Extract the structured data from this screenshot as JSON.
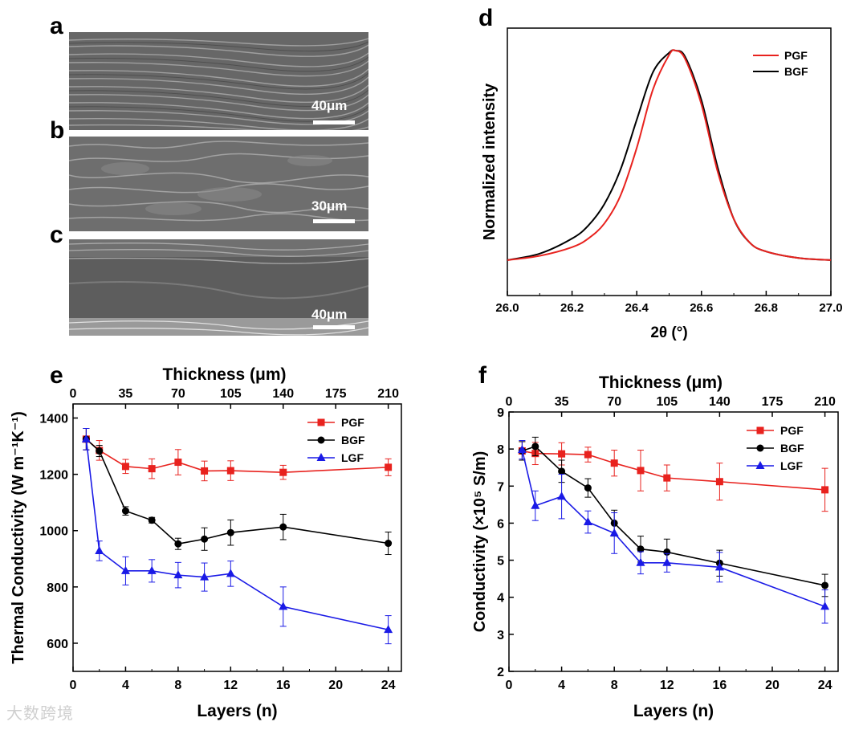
{
  "panels": {
    "a": {
      "letter": "a",
      "scale": "40μm"
    },
    "b": {
      "letter": "b",
      "scale": "30μm"
    },
    "c": {
      "letter": "c",
      "scale": "40μm"
    },
    "d": {
      "letter": "d"
    },
    "e": {
      "letter": "e"
    },
    "f": {
      "letter": "f"
    }
  },
  "watermark": "大数跨境",
  "colors": {
    "PGF": "#e8221e",
    "BGF": "#000000",
    "LGF": "#1a1ae6"
  },
  "chart_data": [
    {
      "id": "d",
      "type": "line",
      "xlabel": "2θ (°)",
      "ylabel": "Normalized intensity",
      "xlim": [
        26.0,
        27.0
      ],
      "ylim": [
        0,
        1
      ],
      "xticks": [
        26.0,
        26.2,
        26.4,
        26.6,
        26.8,
        27.0
      ],
      "xtick_labels": [
        "26.0",
        "26.2",
        "26.4",
        "26.6",
        "26.8",
        "27.0"
      ],
      "legend": [
        "PGF",
        "BGF"
      ],
      "legend_position": "top-right",
      "series": [
        {
          "name": "PGF",
          "x": [
            26.0,
            26.1,
            26.2,
            26.25,
            26.3,
            26.35,
            26.4,
            26.45,
            26.5,
            26.52,
            26.55,
            26.6,
            26.65,
            26.7,
            26.75,
            26.8,
            26.9,
            27.0
          ],
          "y": [
            0.03,
            0.05,
            0.09,
            0.13,
            0.2,
            0.33,
            0.55,
            0.82,
            0.98,
            1.0,
            0.96,
            0.75,
            0.44,
            0.22,
            0.11,
            0.07,
            0.04,
            0.03
          ]
        },
        {
          "name": "BGF",
          "x": [
            26.0,
            26.1,
            26.2,
            26.25,
            26.3,
            26.35,
            26.4,
            26.45,
            26.5,
            26.52,
            26.55,
            26.6,
            26.65,
            26.7,
            26.75,
            26.8,
            26.9,
            27.0
          ],
          "y": [
            0.03,
            0.06,
            0.13,
            0.19,
            0.29,
            0.45,
            0.68,
            0.9,
            0.99,
            1.0,
            0.97,
            0.77,
            0.46,
            0.22,
            0.11,
            0.07,
            0.04,
            0.03
          ]
        }
      ]
    },
    {
      "id": "e",
      "type": "line",
      "xlabel": "Layers (n)",
      "x2label": "Thickness (μm)",
      "ylabel": "Thermal Conductivity (W m⁻¹K⁻¹)",
      "xlim": [
        0,
        25
      ],
      "ylim": [
        500,
        1450
      ],
      "xticks": [
        0,
        4,
        8,
        12,
        16,
        20,
        24
      ],
      "x2ticks": [
        0,
        35,
        70,
        105,
        140,
        175,
        210
      ],
      "yticks": [
        600,
        800,
        1000,
        1200,
        1400
      ],
      "legend_position": "top-right",
      "series": [
        {
          "name": "PGF",
          "marker": "square",
          "x": [
            1,
            2,
            4,
            6,
            8,
            10,
            12,
            16,
            24
          ],
          "y": [
            1325,
            1285,
            1228,
            1220,
            1243,
            1212,
            1213,
            1207,
            1225
          ],
          "err": [
            38,
            35,
            25,
            35,
            45,
            35,
            35,
            25,
            30
          ]
        },
        {
          "name": "BGF",
          "marker": "circle",
          "x": [
            1,
            2,
            4,
            6,
            8,
            10,
            12,
            16,
            24
          ],
          "y": [
            1325,
            1283,
            1070,
            1037,
            953,
            970,
            993,
            1013,
            955
          ],
          "err": [
            38,
            20,
            15,
            10,
            20,
            40,
            45,
            45,
            40
          ]
        },
        {
          "name": "LGF",
          "marker": "triangle",
          "x": [
            1,
            2,
            4,
            6,
            8,
            10,
            12,
            16,
            24
          ],
          "y": [
            1325,
            928,
            857,
            857,
            842,
            835,
            847,
            730,
            648
          ],
          "err": [
            38,
            35,
            50,
            40,
            45,
            50,
            45,
            70,
            50
          ]
        }
      ]
    },
    {
      "id": "f",
      "type": "line",
      "xlabel": "Layers (n)",
      "x2label": "Thickness (μm)",
      "ylabel": "Conductivity (×10⁵ S/m)",
      "xlim": [
        0,
        25
      ],
      "ylim": [
        2,
        9
      ],
      "xticks": [
        0,
        4,
        8,
        12,
        16,
        20,
        24
      ],
      "x2ticks": [
        0,
        35,
        70,
        105,
        140,
        175,
        210
      ],
      "yticks": [
        2,
        3,
        4,
        5,
        6,
        7,
        8,
        9
      ],
      "legend_position": "top-right",
      "series": [
        {
          "name": "PGF",
          "marker": "square",
          "x": [
            1,
            2,
            4,
            6,
            8,
            10,
            12,
            16,
            24
          ],
          "y": [
            7.95,
            7.88,
            7.87,
            7.85,
            7.62,
            7.42,
            7.22,
            7.12,
            6.9
          ],
          "err": [
            0.25,
            0.3,
            0.3,
            0.2,
            0.35,
            0.55,
            0.35,
            0.5,
            0.58
          ]
        },
        {
          "name": "BGF",
          "marker": "circle",
          "x": [
            1,
            2,
            4,
            6,
            8,
            10,
            12,
            16,
            24
          ],
          "y": [
            7.95,
            8.07,
            7.4,
            6.95,
            6.0,
            5.3,
            5.22,
            4.92,
            4.32
          ],
          "err": [
            0.25,
            0.25,
            0.3,
            0.25,
            0.35,
            0.35,
            0.35,
            0.35,
            0.3
          ]
        },
        {
          "name": "LGF",
          "marker": "triangle",
          "x": [
            1,
            2,
            4,
            6,
            8,
            10,
            12,
            16,
            24
          ],
          "y": [
            7.98,
            6.47,
            6.72,
            6.03,
            5.73,
            4.93,
            4.93,
            4.81,
            3.75
          ],
          "err": [
            0.25,
            0.4,
            0.6,
            0.3,
            0.55,
            0.3,
            0.25,
            0.4,
            0.45
          ]
        }
      ]
    }
  ]
}
